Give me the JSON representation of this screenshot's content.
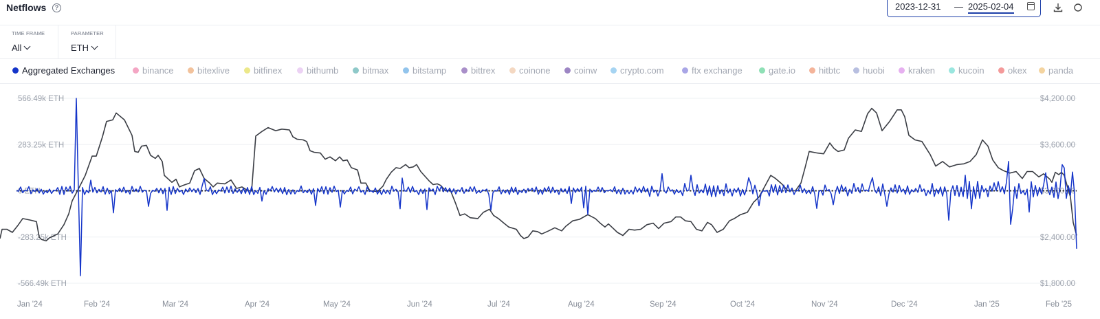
{
  "header": {
    "title": "Netflows",
    "help_icon": "?"
  },
  "date_range": {
    "start": "2023-12-31",
    "end": "2025-02-04",
    "separator": "—"
  },
  "actions": {
    "download_icon": "download-icon",
    "more_icon": "more-icon"
  },
  "filters": {
    "time_frame": {
      "label": "TIME FRAME",
      "value": "All"
    },
    "parameter": {
      "label": "PARAMETER",
      "value": "ETH"
    }
  },
  "legend": [
    {
      "label": "Aggregated Exchanges",
      "color": "#1535c9",
      "active": true
    },
    {
      "label": "binance",
      "color": "#f4a6c4",
      "active": false
    },
    {
      "label": "bitexlive",
      "color": "#f2c29c",
      "active": false
    },
    {
      "label": "bitfinex",
      "color": "#ece88a",
      "active": false
    },
    {
      "label": "bithumb",
      "color": "#ecd2f4",
      "active": false
    },
    {
      "label": "bitmax",
      "color": "#8fc9c9",
      "active": false
    },
    {
      "label": "bitstamp",
      "color": "#92c4ec",
      "active": false
    },
    {
      "label": "bittrex",
      "color": "#a98fc9",
      "active": false
    },
    {
      "label": "coinone",
      "color": "#f4d8c2",
      "active": false
    },
    {
      "label": "coinw",
      "color": "#9d86c4",
      "active": false
    },
    {
      "label": "crypto.com",
      "color": "#a6d4f2",
      "active": false
    },
    {
      "label": "ftx exchange",
      "color": "#a9a6e6",
      "active": false
    },
    {
      "label": "gate.io",
      "color": "#8fe0b6",
      "active": false
    },
    {
      "label": "hitbtc",
      "color": "#f4b49a",
      "active": false
    },
    {
      "label": "huobi",
      "color": "#b8bfe0",
      "active": false
    },
    {
      "label": "kraken",
      "color": "#e6b0f0",
      "active": false
    },
    {
      "label": "kucoin",
      "color": "#9ae6df",
      "active": false
    },
    {
      "label": "okex",
      "color": "#f49a9a",
      "active": false
    },
    {
      "label": "panda",
      "color": "#f4d4a0",
      "active": false
    }
  ],
  "chart_data": {
    "type": "line",
    "left_axis": {
      "ticks": [
        "566.49k ETH",
        "283.25k ETH",
        "0 ETH",
        "-283.25k ETH",
        "-566.49k ETH"
      ],
      "range": [
        -566.49,
        566.49
      ],
      "unit": "k ETH"
    },
    "right_axis": {
      "ticks": [
        "$4,200.00",
        "$3,600.00",
        "$3,000.00",
        "$2,400.00",
        "$1,800.00"
      ],
      "range": [
        1800,
        4200
      ]
    },
    "x_ticks": [
      "Jan '24",
      "Feb '24",
      "Mar '24",
      "Apr '24",
      "May '24",
      "Jun '24",
      "Jul '24",
      "Aug '24",
      "Sep '24",
      "Oct '24",
      "Nov '24",
      "Dec '24",
      "Jan '25",
      "Feb '25"
    ],
    "grid": true,
    "zero_line": "dotted",
    "price_series": {
      "color": "#3a3d44",
      "points": [
        [
          0,
          2380
        ],
        [
          3,
          2500
        ],
        [
          10,
          2500
        ],
        [
          18,
          2460
        ],
        [
          26,
          2550
        ],
        [
          33,
          2640
        ],
        [
          44,
          2620
        ],
        [
          53,
          2600
        ],
        [
          57,
          2400
        ],
        [
          60,
          2370
        ],
        [
          67,
          2350
        ],
        [
          72,
          2390
        ],
        [
          84,
          2440
        ],
        [
          93,
          2560
        ],
        [
          100,
          2700
        ],
        [
          105,
          2870
        ],
        [
          115,
          3040
        ],
        [
          124,
          3200
        ],
        [
          134,
          3450
        ],
        [
          140,
          3450
        ],
        [
          149,
          3700
        ],
        [
          155,
          3900
        ],
        [
          164,
          3920
        ],
        [
          169,
          4010
        ],
        [
          181,
          3920
        ],
        [
          192,
          3720
        ],
        [
          196,
          3510
        ],
        [
          201,
          3500
        ],
        [
          206,
          3580
        ],
        [
          213,
          3590
        ],
        [
          219,
          3460
        ],
        [
          226,
          3420
        ],
        [
          230,
          3460
        ],
        [
          236,
          3380
        ],
        [
          239,
          3200
        ],
        [
          250,
          3110
        ],
        [
          256,
          3150
        ],
        [
          261,
          3050
        ],
        [
          266,
          3070
        ],
        [
          276,
          3100
        ],
        [
          283,
          3260
        ],
        [
          290,
          3290
        ],
        [
          297,
          3160
        ],
        [
          305,
          3100
        ],
        [
          310,
          3050
        ],
        [
          316,
          3100
        ],
        [
          327,
          3090
        ],
        [
          336,
          3140
        ],
        [
          344,
          3030
        ],
        [
          352,
          3050
        ],
        [
          361,
          3000
        ],
        [
          366,
          3000
        ],
        [
          372,
          3710
        ],
        [
          381,
          3770
        ],
        [
          390,
          3820
        ],
        [
          401,
          3780
        ],
        [
          410,
          3800
        ],
        [
          421,
          3790
        ],
        [
          426,
          3700
        ],
        [
          432,
          3670
        ],
        [
          441,
          3660
        ],
        [
          446,
          3640
        ],
        [
          451,
          3520
        ],
        [
          457,
          3500
        ],
        [
          466,
          3490
        ],
        [
          473,
          3410
        ],
        [
          480,
          3440
        ],
        [
          488,
          3390
        ],
        [
          494,
          3440
        ],
        [
          499,
          3390
        ],
        [
          505,
          3400
        ],
        [
          511,
          3300
        ],
        [
          520,
          3270
        ],
        [
          525,
          3100
        ],
        [
          532,
          3100
        ],
        [
          538,
          3000
        ],
        [
          549,
          2990
        ],
        [
          557,
          3060
        ],
        [
          562,
          3150
        ],
        [
          569,
          3240
        ],
        [
          576,
          3300
        ],
        [
          582,
          3290
        ],
        [
          590,
          3340
        ],
        [
          595,
          3300
        ],
        [
          601,
          3310
        ],
        [
          606,
          3340
        ],
        [
          612,
          3250
        ],
        [
          617,
          3200
        ],
        [
          624,
          3130
        ],
        [
          630,
          3080
        ],
        [
          636,
          3090
        ],
        [
          641,
          3070
        ],
        [
          648,
          3000
        ],
        [
          655,
          3010
        ],
        [
          663,
          2830
        ],
        [
          669,
          2680
        ],
        [
          676,
          2700
        ],
        [
          684,
          2650
        ],
        [
          695,
          2640
        ],
        [
          703,
          2720
        ],
        [
          712,
          2760
        ],
        [
          718,
          2680
        ],
        [
          725,
          2640
        ],
        [
          733,
          2580
        ],
        [
          740,
          2530
        ],
        [
          751,
          2500
        ],
        [
          757,
          2420
        ],
        [
          762,
          2380
        ],
        [
          768,
          2400
        ],
        [
          775,
          2480
        ],
        [
          782,
          2470
        ],
        [
          788,
          2440
        ],
        [
          798,
          2480
        ],
        [
          807,
          2520
        ],
        [
          817,
          2480
        ],
        [
          823,
          2540
        ],
        [
          833,
          2610
        ],
        [
          843,
          2630
        ],
        [
          855,
          2690
        ],
        [
          866,
          2640
        ],
        [
          873,
          2580
        ],
        [
          880,
          2530
        ],
        [
          885,
          2570
        ],
        [
          891,
          2520
        ],
        [
          898,
          2460
        ],
        [
          906,
          2420
        ],
        [
          915,
          2500
        ],
        [
          923,
          2490
        ],
        [
          932,
          2500
        ],
        [
          941,
          2560
        ],
        [
          950,
          2580
        ],
        [
          958,
          2510
        ],
        [
          966,
          2580
        ],
        [
          976,
          2600
        ],
        [
          983,
          2660
        ],
        [
          990,
          2660
        ],
        [
          997,
          2610
        ],
        [
          1005,
          2600
        ],
        [
          1013,
          2500
        ],
        [
          1021,
          2480
        ],
        [
          1029,
          2590
        ],
        [
          1035,
          2560
        ],
        [
          1043,
          2460
        ],
        [
          1052,
          2500
        ],
        [
          1061,
          2610
        ],
        [
          1068,
          2640
        ],
        [
          1077,
          2690
        ],
        [
          1087,
          2720
        ],
        [
          1096,
          2850
        ],
        [
          1104,
          2920
        ],
        [
          1112,
          3050
        ],
        [
          1121,
          3200
        ],
        [
          1128,
          3160
        ],
        [
          1137,
          3090
        ],
        [
          1146,
          3000
        ],
        [
          1157,
          3000
        ],
        [
          1165,
          3100
        ],
        [
          1171,
          3300
        ],
        [
          1177,
          3510
        ],
        [
          1189,
          3490
        ],
        [
          1198,
          3480
        ],
        [
          1207,
          3620
        ],
        [
          1213,
          3550
        ],
        [
          1219,
          3510
        ],
        [
          1228,
          3530
        ],
        [
          1234,
          3680
        ],
        [
          1244,
          3790
        ],
        [
          1253,
          3770
        ],
        [
          1262,
          4000
        ],
        [
          1268,
          4070
        ],
        [
          1275,
          4010
        ],
        [
          1283,
          3780
        ],
        [
          1294,
          3900
        ],
        [
          1305,
          4050
        ],
        [
          1311,
          4050
        ],
        [
          1316,
          3960
        ],
        [
          1322,
          3720
        ],
        [
          1331,
          3660
        ],
        [
          1341,
          3640
        ],
        [
          1353,
          3470
        ],
        [
          1361,
          3320
        ],
        [
          1371,
          3380
        ],
        [
          1381,
          3310
        ],
        [
          1392,
          3340
        ],
        [
          1402,
          3350
        ],
        [
          1411,
          3380
        ],
        [
          1420,
          3470
        ],
        [
          1429,
          3660
        ],
        [
          1437,
          3580
        ],
        [
          1444,
          3400
        ],
        [
          1452,
          3300
        ],
        [
          1460,
          3260
        ],
        [
          1469,
          3230
        ],
        [
          1478,
          3250
        ],
        [
          1487,
          3160
        ],
        [
          1494,
          3250
        ],
        [
          1502,
          3250
        ],
        [
          1511,
          3180
        ],
        [
          1518,
          3220
        ],
        [
          1527,
          3150
        ],
        [
          1530,
          3110
        ],
        [
          1535,
          3240
        ],
        [
          1540,
          3210
        ],
        [
          1544,
          3240
        ],
        [
          1548,
          3200
        ],
        [
          1553,
          3040
        ],
        [
          1557,
          2920
        ],
        [
          1561,
          2590
        ],
        [
          1566,
          2420
        ]
      ]
    },
    "netflow_series": {
      "name": "Aggregated Exchanges",
      "color": "#1535c9",
      "spikes": [
        [
          112,
          566
        ],
        [
          118,
          -520
        ],
        [
          133,
          65
        ],
        [
          165,
          -135
        ],
        [
          216,
          -95
        ],
        [
          243,
          -120
        ],
        [
          297,
          75
        ],
        [
          382,
          -63
        ],
        [
          460,
          -90
        ],
        [
          495,
          -100
        ],
        [
          582,
          -110
        ],
        [
          585,
          78
        ],
        [
          620,
          -115
        ],
        [
          714,
          -118
        ],
        [
          830,
          -78
        ],
        [
          848,
          -105
        ],
        [
          855,
          -145
        ],
        [
          962,
          105
        ],
        [
          1006,
          95
        ],
        [
          1090,
          80
        ],
        [
          1105,
          -92
        ],
        [
          1187,
          -108
        ],
        [
          1212,
          -85
        ],
        [
          1268,
          80
        ],
        [
          1290,
          -95
        ],
        [
          1380,
          -180
        ],
        [
          1405,
          95
        ],
        [
          1412,
          -110
        ],
        [
          1466,
          180
        ],
        [
          1469,
          -205
        ],
        [
          1473,
          -110
        ],
        [
          1497,
          -130
        ],
        [
          1522,
          110
        ],
        [
          1545,
          160
        ],
        [
          1548,
          140
        ],
        [
          1561,
          115
        ],
        [
          1566,
          -355
        ]
      ]
    }
  }
}
